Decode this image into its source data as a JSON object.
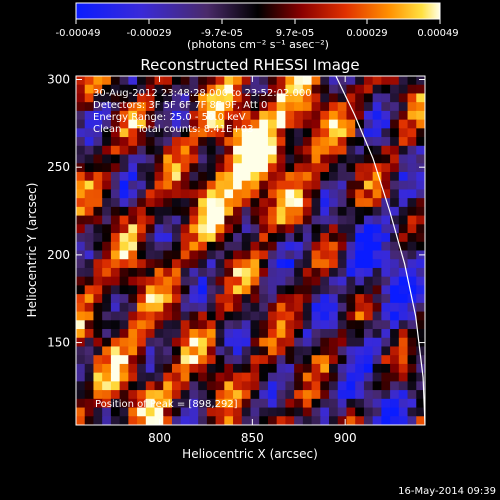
{
  "colorbar": {
    "ticks": [
      "-0.00049",
      "-0.00029",
      "-9.7e-05",
      "9.7e-05",
      "0.00029",
      "0.00049"
    ],
    "units": "(photons cm⁻² s⁻¹ asec⁻²)",
    "range": [
      -0.00049,
      0.00049
    ],
    "colormap": "blue-purple-black-red-orange-yellow-white"
  },
  "chart_data": {
    "type": "heatmap",
    "title": "Reconstructed RHESSI Image",
    "xlabel": "Heliocentric X (arcsec)",
    "ylabel": "Heliocentric Y (arcsec)",
    "xlim": [
      755,
      943
    ],
    "ylim": [
      103,
      302
    ],
    "xticks": [
      800,
      850,
      900
    ],
    "yticks": [
      150,
      200,
      250,
      300
    ],
    "annotations": [
      "30-Aug-2012 23:48:28.000 to 23:52:02.000",
      "Detectors: 3F 5F 6F 7F 8F 9F, Att 0",
      "Energy Range: 25.0 - 50.0 keV",
      "Clean     Total counts: 8.41E+03"
    ],
    "peak_label": "Position of Peak = [898,292]",
    "peak": [
      898,
      292
    ],
    "limb_curve": [
      [
        895,
        302
      ],
      [
        905,
        280
      ],
      [
        915,
        255
      ],
      [
        924,
        225
      ],
      [
        932,
        195
      ],
      [
        938,
        165
      ],
      [
        942,
        130
      ],
      [
        943,
        103
      ]
    ],
    "grid": false
  },
  "footer": {
    "date": "16-May-2014 09:39"
  }
}
